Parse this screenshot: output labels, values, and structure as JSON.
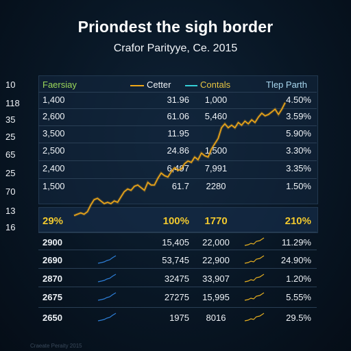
{
  "title": "Priondest the sigh border",
  "subtitle": "Crafor Parityye, Ce. 2015",
  "left_labels": [
    "10",
    "118",
    "35",
    "25",
    "65",
    "25",
    "70",
    "13",
    "16"
  ],
  "header": {
    "col1": "Faersiay",
    "legend1": "Cetter",
    "legend2": "Contals",
    "col4": "Tlep Parth"
  },
  "colors": {
    "series_line": "#f0a818",
    "legend_green": "#9bd85a",
    "legend_cyan": "#35d0d8",
    "highlight": "#f2c92e",
    "spark_blue": "#2e7fd8",
    "spark_gold": "#e8b020"
  },
  "upper_rows": [
    [
      "1,400",
      "31.96",
      "1,000",
      "4.50%"
    ],
    [
      "2,600",
      "61.06",
      "5,460",
      "3.59%"
    ],
    [
      "3,500",
      "11.95",
      "",
      "5.90%"
    ],
    [
      "2,500",
      "24.86",
      "1,500",
      "3.30%"
    ],
    [
      "2,400",
      "6,497",
      "7,991",
      "3.35%"
    ],
    [
      "1,500",
      "61.7",
      "2280",
      "1.50%"
    ]
  ],
  "highlight_row": [
    "29%",
    "100%",
    "1770",
    "210%"
  ],
  "lower_rows": [
    [
      "2900",
      "15,405",
      "22,000",
      "11.29%"
    ],
    [
      "2690",
      "53,745",
      "22,900",
      "24.90%"
    ],
    [
      "2870",
      "32475",
      "33,907",
      "1.20%"
    ],
    [
      "2675",
      "27275",
      "15,995",
      "5.55%"
    ],
    [
      "2650",
      "1975",
      "8016",
      "29.5%"
    ]
  ],
  "footer": "Craeate Peraity 2015",
  "chart_data": {
    "type": "line",
    "title": "Priondest the sigh border",
    "subtitle": "Crafor Parityye, Ce. 2015",
    "xlabel": "",
    "ylabel": "",
    "grid": true,
    "series": [
      {
        "name": "Cetter",
        "values": [
          8,
          9,
          10,
          9,
          11,
          16,
          20,
          21,
          19,
          17,
          18,
          17,
          19,
          18,
          22,
          26,
          28,
          27,
          30,
          31,
          29,
          27,
          33,
          31,
          31,
          36,
          40,
          38,
          37,
          41,
          44,
          42,
          43,
          47,
          49,
          48,
          52,
          50,
          55,
          53,
          52,
          58,
          62,
          66,
          74,
          77,
          74,
          76,
          74,
          78,
          76,
          79,
          77,
          80,
          78,
          82,
          85,
          83,
          84,
          86,
          88,
          84,
          88,
          93
        ]
      }
    ],
    "ylim": [
      0,
      100
    ],
    "legend": "top"
  }
}
